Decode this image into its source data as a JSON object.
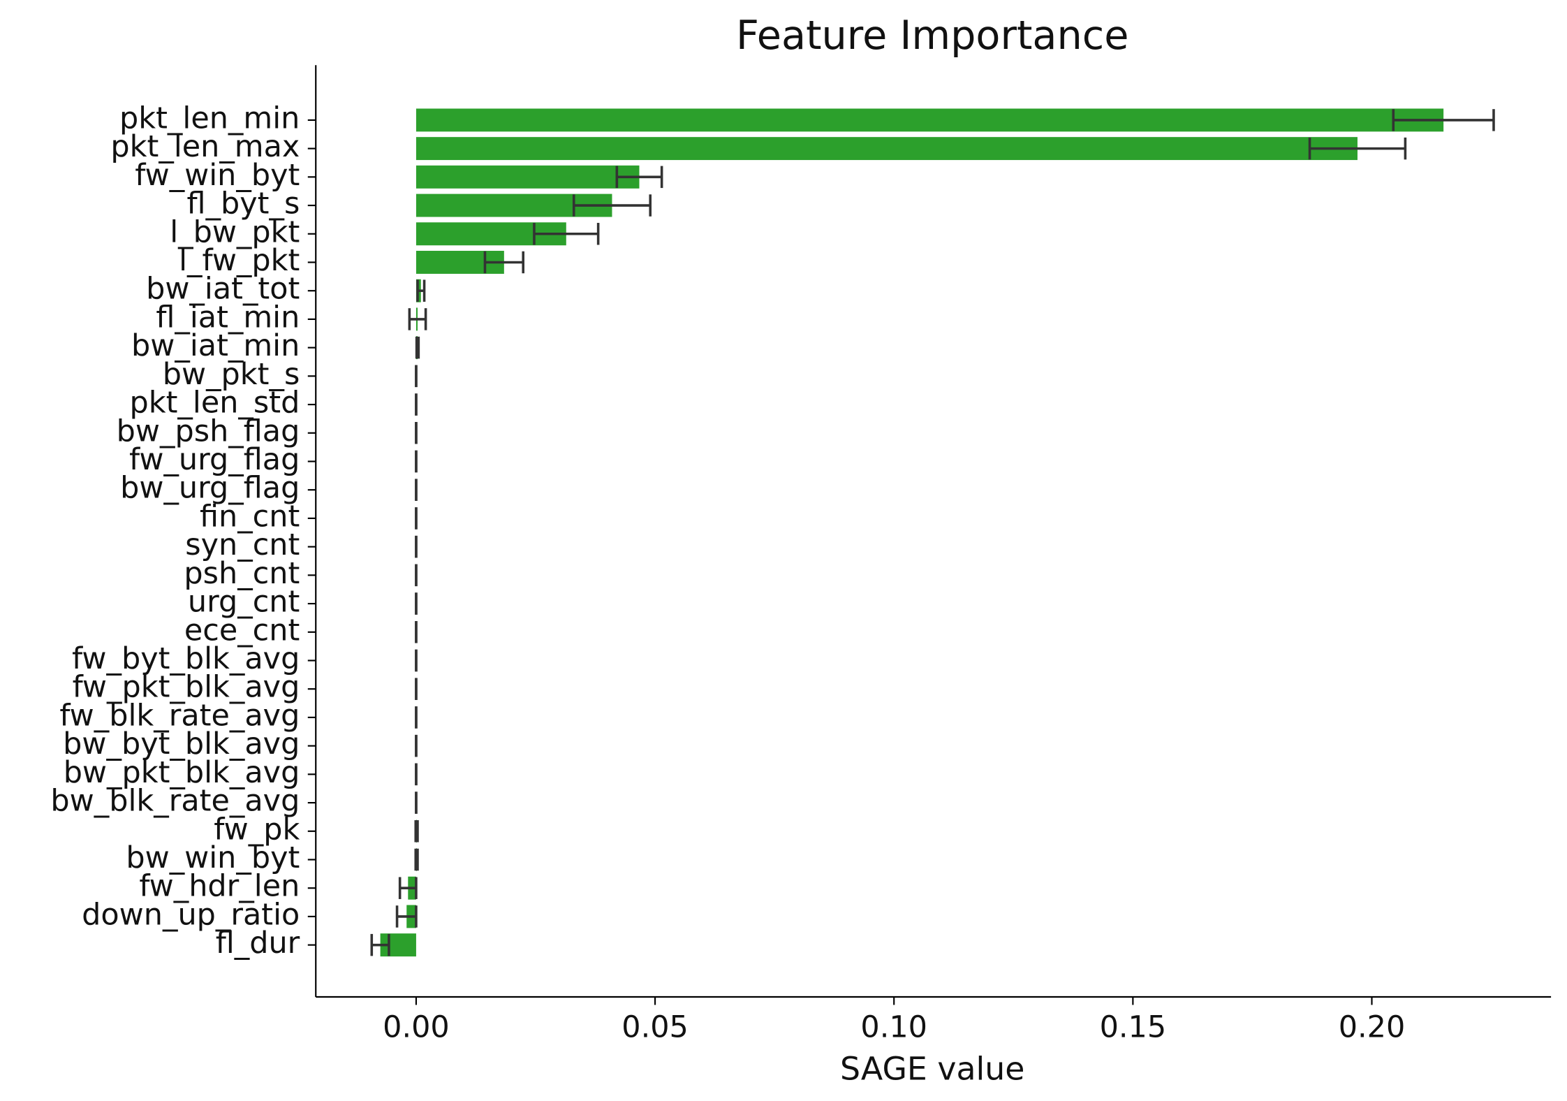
{
  "chart_data": {
    "type": "barh",
    "title": "Feature Importance",
    "x_label": "SAGE value",
    "categories": [
      "pkt_len_min",
      "pkt_len_max",
      "fw_win_byt",
      "fl_byt_s",
      "l_bw_pkt",
      "l_fw_pkt",
      "bw_iat_tot",
      "fl_iat_min",
      "bw_iat_min",
      "bw_pkt_s",
      "pkt_len_std",
      "bw_psh_flag",
      "fw_urg_flag",
      "bw_urg_flag",
      "fin_cnt",
      "syn_cnt",
      "psh_cnt",
      "urg_cnt",
      "ece_cnt",
      "fw_byt_blk_avg",
      "fw_pkt_blk_avg",
      "fw_blk_rate_avg",
      "bw_byt_blk_avg",
      "bw_pkt_blk_avg",
      "bw_blk_rate_avg",
      "fw_pk",
      "bw_win_byt",
      "fw_hdr_len",
      "down_up_ratio",
      "fl_dur"
    ],
    "values": [
      0.215,
      0.197,
      0.0467,
      0.041,
      0.0314,
      0.0184,
      0.001,
      0.0003,
      0.0003,
      0,
      0,
      0,
      0,
      0,
      0,
      0,
      0,
      0,
      0,
      0,
      0,
      0,
      0,
      0,
      0,
      0.0001,
      0.0001,
      -0.0017,
      -0.002,
      -0.0075
    ],
    "errors": [
      0.0105,
      0.01,
      0.0047,
      0.008,
      0.0067,
      0.004,
      0.0007,
      0.0017,
      0.0002,
      0,
      0,
      0,
      0,
      0,
      0,
      0,
      0,
      0,
      0,
      0,
      0,
      0,
      0,
      0,
      0,
      0.0002,
      0.0002,
      0.0017,
      0.002,
      0.0018
    ],
    "color": "#2ca02c",
    "error_color": "#333333",
    "xlim": [
      -0.021,
      0.2375
    ],
    "xticks": [
      {
        "value": 0,
        "label": "0.00"
      },
      0.05,
      {
        "value": 0.1,
        "label": "0.10"
      },
      0.15,
      {
        "value": 0.2,
        "label": "0.20"
      }
    ]
  }
}
